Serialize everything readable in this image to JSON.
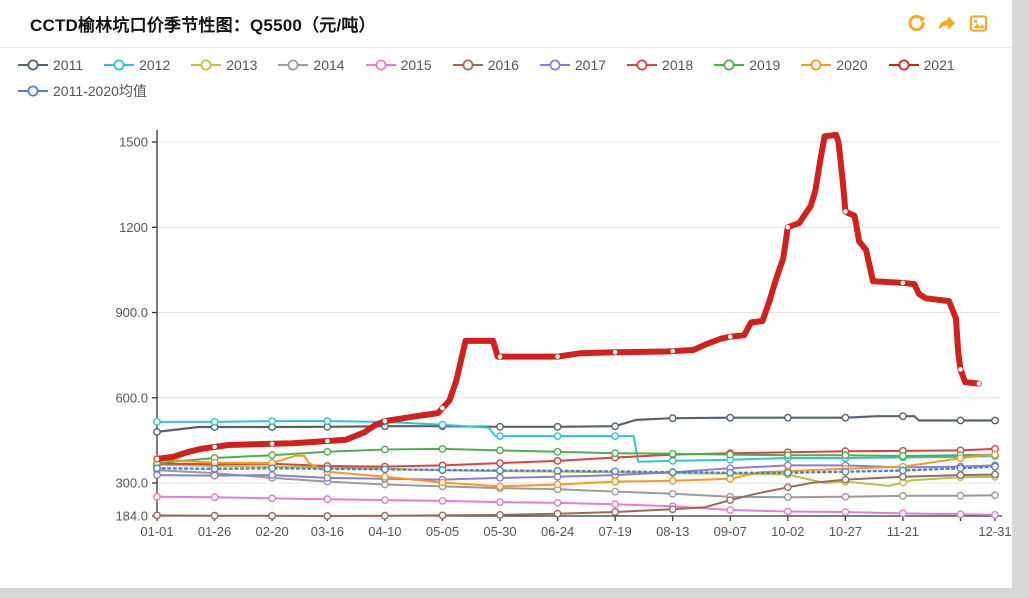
{
  "header": {
    "title": "CCTD榆林坑口价季节性图：Q5500（元/吨）",
    "icons": [
      {
        "name": "refresh-icon"
      },
      {
        "name": "share-icon"
      },
      {
        "name": "export-image-icon"
      }
    ],
    "icon_color": "#f5a623"
  },
  "chart_data": {
    "type": "line",
    "title": "CCTD榆林坑口价季节性图：Q5500（元/吨）",
    "unit": "元/吨",
    "legend_position": "top",
    "grid": true,
    "x_axis": {
      "kind": "day-of-year",
      "ticks": [
        {
          "date": "01-01",
          "label": "01-01"
        },
        {
          "date": "01-26",
          "label": "01-26"
        },
        {
          "date": "02-20",
          "label": "02-20"
        },
        {
          "date": "03-16",
          "label": "03-16"
        },
        {
          "date": "04-10",
          "label": "04-10"
        },
        {
          "date": "05-05",
          "label": "05-05"
        },
        {
          "date": "05-30",
          "label": "05-30"
        },
        {
          "date": "06-24",
          "label": "06-24"
        },
        {
          "date": "07-19",
          "label": "07-19"
        },
        {
          "date": "08-13",
          "label": "08-13"
        },
        {
          "date": "09-07",
          "label": "09-07"
        },
        {
          "date": "10-02",
          "label": "10-02"
        },
        {
          "date": "10-27",
          "label": "10-27"
        },
        {
          "date": "11-21",
          "label": "11-21"
        },
        {
          "date": "12-16",
          "label": ""
        },
        {
          "date": "12-31",
          "label": "12-31"
        }
      ]
    },
    "y_axis": {
      "min": 184,
      "grid_max": 1500,
      "ticks": [
        {
          "value": 184,
          "label": "184.0"
        },
        {
          "value": 300,
          "label": "300.0"
        },
        {
          "value": 600,
          "label": "600.0"
        },
        {
          "value": 900,
          "label": "900.0"
        },
        {
          "value": 1200,
          "label": "1200"
        },
        {
          "value": 1500,
          "label": "1500"
        }
      ]
    },
    "series": [
      {
        "name": "2011",
        "color": "#55626e",
        "width": 2.2,
        "points": [
          [
            "01-01",
            480
          ],
          [
            "01-19",
            497
          ],
          [
            "02-20",
            497
          ],
          [
            "03-16",
            498
          ],
          [
            "04-10",
            500
          ],
          [
            "05-05",
            500
          ],
          [
            "05-30",
            498
          ],
          [
            "06-24",
            498
          ],
          [
            "07-19",
            500
          ],
          [
            "07-28",
            522
          ],
          [
            "08-13",
            528
          ],
          [
            "09-07",
            530
          ],
          [
            "10-02",
            530
          ],
          [
            "10-27",
            530
          ],
          [
            "11-10",
            535
          ],
          [
            "11-26",
            535
          ],
          [
            "11-28",
            520
          ],
          [
            "12-16",
            520
          ],
          [
            "12-31",
            520
          ]
        ]
      },
      {
        "name": "2012",
        "color": "#2fc4cf",
        "width": 2,
        "points": [
          [
            "01-01",
            515
          ],
          [
            "01-26",
            515
          ],
          [
            "02-20",
            518
          ],
          [
            "03-16",
            518
          ],
          [
            "04-10",
            515
          ],
          [
            "05-05",
            505
          ],
          [
            "05-25",
            495
          ],
          [
            "05-28",
            465
          ],
          [
            "06-24",
            465
          ],
          [
            "07-27",
            465
          ],
          [
            "07-29",
            375
          ],
          [
            "08-13",
            378
          ],
          [
            "09-07",
            382
          ],
          [
            "10-02",
            388
          ],
          [
            "10-27",
            388
          ],
          [
            "11-21",
            390
          ],
          [
            "12-16",
            392
          ],
          [
            "12-31",
            395
          ]
        ]
      },
      {
        "name": "2013",
        "color": "#bcbe4e",
        "width": 2,
        "points": [
          [
            "01-01",
            365
          ],
          [
            "01-26",
            360
          ],
          [
            "02-20",
            358
          ],
          [
            "03-16",
            355
          ],
          [
            "04-10",
            350
          ],
          [
            "05-05",
            345
          ],
          [
            "05-30",
            342
          ],
          [
            "06-24",
            340
          ],
          [
            "07-19",
            338
          ],
          [
            "08-13",
            335
          ],
          [
            "09-07",
            333
          ],
          [
            "10-02",
            330
          ],
          [
            "10-18",
            300
          ],
          [
            "10-27",
            305
          ],
          [
            "11-15",
            290
          ],
          [
            "11-25",
            310
          ],
          [
            "12-16",
            320
          ],
          [
            "12-31",
            322
          ]
        ]
      },
      {
        "name": "2014",
        "color": "#9b9b9b",
        "width": 2,
        "points": [
          [
            "01-01",
            345
          ],
          [
            "01-26",
            335
          ],
          [
            "02-20",
            318
          ],
          [
            "03-16",
            305
          ],
          [
            "04-10",
            295
          ],
          [
            "05-05",
            288
          ],
          [
            "05-30",
            282
          ],
          [
            "06-24",
            278
          ],
          [
            "07-19",
            270
          ],
          [
            "08-13",
            262
          ],
          [
            "09-07",
            252
          ],
          [
            "10-02",
            250
          ],
          [
            "10-27",
            252
          ],
          [
            "11-21",
            255
          ],
          [
            "12-16",
            255
          ],
          [
            "12-31",
            257
          ]
        ]
      },
      {
        "name": "2015",
        "color": "#ea7ccc",
        "width": 2,
        "points": [
          [
            "01-01",
            252
          ],
          [
            "01-26",
            250
          ],
          [
            "02-20",
            246
          ],
          [
            "03-16",
            243
          ],
          [
            "04-10",
            240
          ],
          [
            "05-05",
            237
          ],
          [
            "05-30",
            233
          ],
          [
            "06-24",
            230
          ],
          [
            "07-19",
            225
          ],
          [
            "08-13",
            218
          ],
          [
            "09-07",
            205
          ],
          [
            "10-02",
            200
          ],
          [
            "10-27",
            198
          ],
          [
            "11-21",
            193
          ],
          [
            "12-16",
            190
          ],
          [
            "12-31",
            188
          ]
        ]
      },
      {
        "name": "2016",
        "color": "#9a6a5c",
        "width": 2,
        "points": [
          [
            "01-01",
            186
          ],
          [
            "01-26",
            185
          ],
          [
            "02-20",
            185
          ],
          [
            "03-16",
            184
          ],
          [
            "04-10",
            185
          ],
          [
            "05-05",
            186
          ],
          [
            "05-30",
            188
          ],
          [
            "06-24",
            192
          ],
          [
            "07-19",
            198
          ],
          [
            "08-13",
            208
          ],
          [
            "08-27",
            215
          ],
          [
            "09-07",
            240
          ],
          [
            "09-18",
            262
          ],
          [
            "10-02",
            285
          ],
          [
            "10-12",
            300
          ],
          [
            "10-27",
            312
          ],
          [
            "11-21",
            322
          ],
          [
            "12-16",
            328
          ],
          [
            "12-31",
            330
          ]
        ]
      },
      {
        "name": "2017",
        "color": "#8f7cd0",
        "width": 2,
        "points": [
          [
            "01-01",
            328
          ],
          [
            "01-26",
            326
          ],
          [
            "02-20",
            328
          ],
          [
            "03-16",
            318
          ],
          [
            "04-10",
            315
          ],
          [
            "05-05",
            312
          ],
          [
            "05-30",
            318
          ],
          [
            "06-24",
            322
          ],
          [
            "07-19",
            328
          ],
          [
            "08-13",
            338
          ],
          [
            "09-07",
            352
          ],
          [
            "10-02",
            362
          ],
          [
            "10-27",
            362
          ],
          [
            "11-21",
            355
          ],
          [
            "12-16",
            358
          ],
          [
            "12-31",
            362
          ]
        ]
      },
      {
        "name": "2018",
        "color": "#d64541",
        "width": 2,
        "points": [
          [
            "01-01",
            368
          ],
          [
            "01-26",
            366
          ],
          [
            "02-20",
            368
          ],
          [
            "03-16",
            360
          ],
          [
            "04-10",
            358
          ],
          [
            "05-05",
            362
          ],
          [
            "05-30",
            370
          ],
          [
            "06-24",
            378
          ],
          [
            "07-19",
            390
          ],
          [
            "08-13",
            400
          ],
          [
            "09-07",
            405
          ],
          [
            "10-02",
            408
          ],
          [
            "10-27",
            412
          ],
          [
            "11-21",
            413
          ],
          [
            "12-16",
            415
          ],
          [
            "12-31",
            420
          ]
        ]
      },
      {
        "name": "2019",
        "color": "#4daf4e",
        "width": 2,
        "points": [
          [
            "01-01",
            370
          ],
          [
            "01-26",
            388
          ],
          [
            "02-20",
            398
          ],
          [
            "03-16",
            410
          ],
          [
            "04-10",
            418
          ],
          [
            "05-05",
            420
          ],
          [
            "05-30",
            415
          ],
          [
            "06-24",
            410
          ],
          [
            "07-19",
            405
          ],
          [
            "08-13",
            403
          ],
          [
            "09-07",
            400
          ],
          [
            "10-02",
            398
          ],
          [
            "10-27",
            398
          ],
          [
            "11-21",
            395
          ],
          [
            "12-16",
            398
          ],
          [
            "12-31",
            400
          ]
        ]
      },
      {
        "name": "2020",
        "color": "#f59a23",
        "width": 2,
        "points": [
          [
            "01-01",
            385
          ],
          [
            "01-10",
            378
          ],
          [
            "01-26",
            372
          ],
          [
            "02-20",
            370
          ],
          [
            "03-02",
            396
          ],
          [
            "03-06",
            396
          ],
          [
            "03-08",
            370
          ],
          [
            "03-16",
            340
          ],
          [
            "04-10",
            322
          ],
          [
            "05-05",
            302
          ],
          [
            "05-30",
            288
          ],
          [
            "06-24",
            295
          ],
          [
            "07-19",
            305
          ],
          [
            "08-13",
            308
          ],
          [
            "09-07",
            315
          ],
          [
            "09-20",
            338
          ],
          [
            "10-02",
            342
          ],
          [
            "10-27",
            350
          ],
          [
            "11-21",
            358
          ],
          [
            "12-10",
            380
          ],
          [
            "12-25",
            398
          ],
          [
            "12-31",
            400
          ]
        ]
      },
      {
        "name": "2021",
        "color": "#d0211f",
        "width": 6,
        "points": [
          [
            "01-01",
            385
          ],
          [
            "01-08",
            392
          ],
          [
            "01-14",
            408
          ],
          [
            "01-20",
            420
          ],
          [
            "02-01",
            434
          ],
          [
            "02-20",
            438
          ],
          [
            "03-01",
            440
          ],
          [
            "03-16",
            448
          ],
          [
            "03-24",
            452
          ],
          [
            "04-01",
            478
          ],
          [
            "04-06",
            505
          ],
          [
            "04-10",
            518
          ],
          [
            "04-18",
            528
          ],
          [
            "04-26",
            538
          ],
          [
            "05-03",
            546
          ],
          [
            "05-08",
            590
          ],
          [
            "05-11",
            660
          ],
          [
            "05-13",
            730
          ],
          [
            "05-15",
            800
          ],
          [
            "05-27",
            800
          ],
          [
            "05-29",
            745
          ],
          [
            "06-24",
            745
          ],
          [
            "07-04",
            757
          ],
          [
            "07-19",
            760
          ],
          [
            "08-10",
            763
          ],
          [
            "08-22",
            768
          ],
          [
            "08-28",
            790
          ],
          [
            "09-03",
            808
          ],
          [
            "09-07",
            815
          ],
          [
            "09-13",
            820
          ],
          [
            "09-16",
            865
          ],
          [
            "09-21",
            870
          ],
          [
            "09-24",
            940
          ],
          [
            "09-27",
            1020
          ],
          [
            "09-30",
            1090
          ],
          [
            "10-02",
            1200
          ],
          [
            "10-07",
            1215
          ],
          [
            "10-09",
            1240
          ],
          [
            "10-12",
            1275
          ],
          [
            "10-14",
            1330
          ],
          [
            "10-16",
            1430
          ],
          [
            "10-18",
            1520
          ],
          [
            "10-23",
            1525
          ],
          [
            "10-24",
            1500
          ],
          [
            "10-26",
            1350
          ],
          [
            "10-27",
            1255
          ],
          [
            "10-31",
            1240
          ],
          [
            "11-02",
            1150
          ],
          [
            "11-05",
            1120
          ],
          [
            "11-08",
            1010
          ],
          [
            "11-20",
            1005
          ],
          [
            "11-26",
            1000
          ],
          [
            "11-28",
            965
          ],
          [
            "12-01",
            950
          ],
          [
            "12-11",
            940
          ],
          [
            "12-13",
            900
          ],
          [
            "12-14",
            880
          ],
          [
            "12-15",
            760
          ],
          [
            "12-16",
            700
          ],
          [
            "12-18",
            655
          ],
          [
            "12-24",
            650
          ]
        ]
      },
      {
        "name": "2011-2020均值",
        "color": "#4f82c2",
        "width": 2.4,
        "dash": "dotted",
        "points": [
          [
            "01-01",
            352
          ],
          [
            "01-26",
            350
          ],
          [
            "02-20",
            352
          ],
          [
            "03-16",
            350
          ],
          [
            "04-10",
            348
          ],
          [
            "05-05",
            346
          ],
          [
            "05-30",
            344
          ],
          [
            "06-24",
            343
          ],
          [
            "07-19",
            341
          ],
          [
            "08-13",
            338
          ],
          [
            "09-07",
            336
          ],
          [
            "10-02",
            336
          ],
          [
            "10-27",
            340
          ],
          [
            "11-21",
            344
          ],
          [
            "12-16",
            352
          ],
          [
            "12-31",
            358
          ]
        ]
      }
    ],
    "legend_row1_count": 11
  },
  "colors": {
    "axis": "#333333",
    "gridline": "#e4e4e4",
    "tick_label": "#555555",
    "page_chrome": "#d8d8d8"
  }
}
